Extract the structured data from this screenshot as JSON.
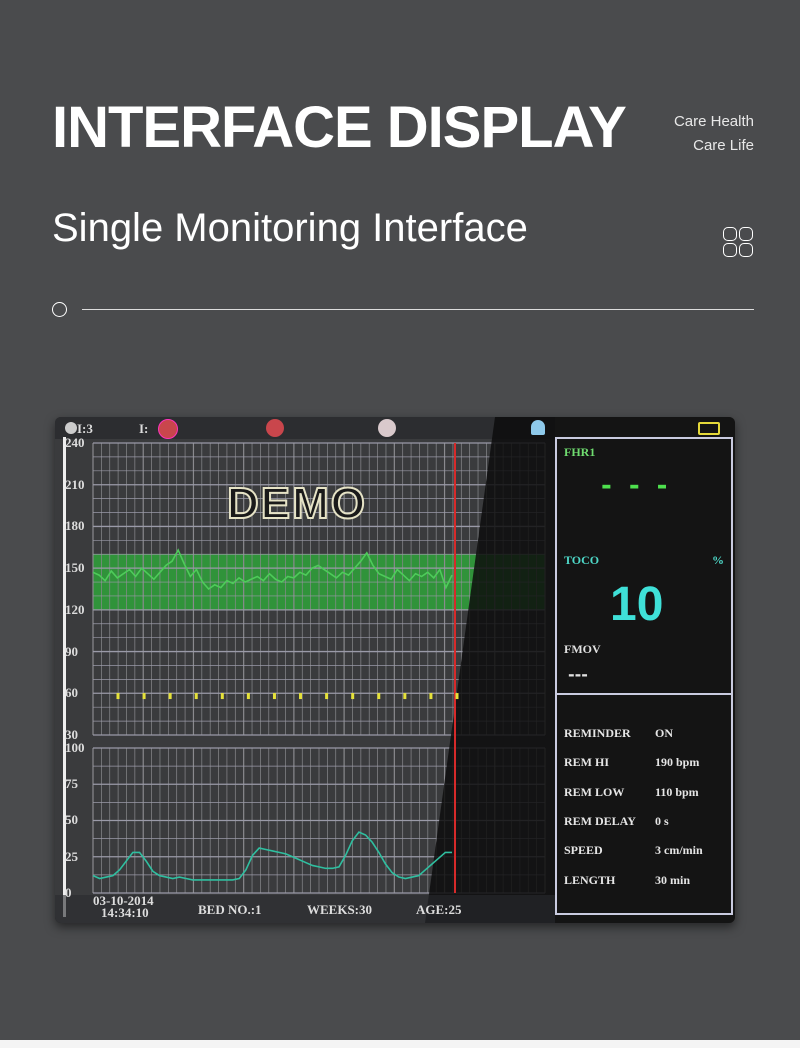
{
  "header": {
    "title": "INTERFACE DISPLAY",
    "tagline": [
      "Care Health",
      "Care Life"
    ],
    "subtitle": "Single Monitoring Interface"
  },
  "monitor": {
    "status_bar": {
      "indicator_1": "I:3",
      "indicator_2": "I:"
    },
    "demo_watermark": "DEMO",
    "fhr_axis": [
      "240",
      "210",
      "180",
      "150",
      "120",
      "90",
      "60",
      "30"
    ],
    "toco_axis": [
      "100",
      "75",
      "50",
      "25",
      "0"
    ],
    "footer": {
      "date": "03-10-2014",
      "time": "14:34:10",
      "bed": "BED NO.:1",
      "weeks": "WEEKS:30",
      "age": "AGE:25"
    },
    "right_panel": {
      "fhr_label": "FHR1",
      "fhr_value": "- - -",
      "toco_label": "TOCO",
      "toco_unit": "%",
      "toco_value": "10",
      "fmov_label": "FMOV",
      "fmov_value": "---",
      "settings": [
        {
          "label": "REMINDER",
          "value": "ON"
        },
        {
          "label": "REM HI",
          "value": "190 bpm"
        },
        {
          "label": "REM LOW",
          "value": "110 bpm"
        },
        {
          "label": "REM DELAY",
          "value": "0 s"
        },
        {
          "label": "SPEED",
          "value": "3 cm/min"
        },
        {
          "label": "LENGTH",
          "value": "30 min"
        }
      ]
    },
    "colors": {
      "fhr_trace": "#4ecb5a",
      "toco_trace": "#2fbfa0",
      "normal_band": "#2fa33a",
      "cursor": "#d62a2a",
      "fmov_marker": "#e6e23a",
      "toco_value": "#3fe0d8"
    }
  },
  "chart_data": [
    {
      "type": "line",
      "name": "FHR",
      "ylim": [
        30,
        240
      ],
      "yticks": [
        240,
        210,
        180,
        150,
        120,
        90,
        60,
        30
      ],
      "band": [
        120,
        160
      ],
      "values": [
        147,
        145,
        141,
        148,
        143,
        146,
        149,
        144,
        150,
        146,
        142,
        147,
        152,
        155,
        163,
        153,
        144,
        149,
        140,
        135,
        138,
        136,
        141,
        139,
        143,
        140,
        142,
        144,
        141,
        146,
        142,
        140,
        144,
        143,
        147,
        145,
        150,
        152,
        149,
        146,
        143,
        147,
        145,
        150,
        155,
        161,
        152,
        146,
        144,
        142,
        149,
        145,
        141,
        146,
        144,
        147,
        143,
        149,
        136,
        145
      ]
    },
    {
      "type": "line",
      "name": "TOCO",
      "ylim": [
        0,
        100
      ],
      "yticks": [
        100,
        75,
        50,
        25,
        0
      ],
      "values": [
        12,
        10,
        11,
        12,
        16,
        22,
        28,
        28,
        22,
        15,
        12,
        11,
        10,
        11,
        10,
        9,
        9,
        9,
        9,
        9,
        9,
        9,
        10,
        16,
        26,
        31,
        30,
        29,
        28,
        27,
        25,
        23,
        21,
        19,
        18,
        17,
        17,
        18,
        26,
        36,
        42,
        40,
        35,
        28,
        20,
        14,
        11,
        10,
        11,
        12,
        16,
        20,
        24,
        28,
        28
      ]
    },
    {
      "type": "scatter",
      "name": "FMOV",
      "marker_bpm": 58,
      "count": 14
    }
  ]
}
